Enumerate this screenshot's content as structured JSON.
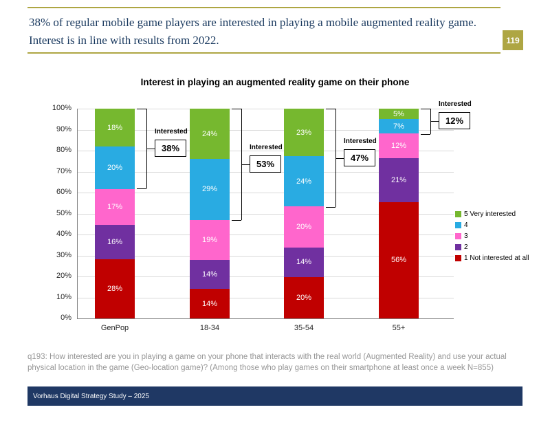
{
  "header": {
    "title": "38% of regular mobile game players are interested in playing a mobile augmented reality game. Interest is in line with results from 2022.",
    "page_number": "119"
  },
  "chart_data": {
    "type": "bar",
    "stacked": true,
    "title": "Interest in playing an augmented reality game on their phone",
    "categories": [
      "GenPop",
      "18-34",
      "35-54",
      "55+"
    ],
    "series": [
      {
        "name": "1 Not interested at all",
        "color": "#C00000",
        "values": [
          28,
          14,
          20,
          56
        ]
      },
      {
        "name": "2",
        "color": "#7030A0",
        "values": [
          16,
          14,
          14,
          21
        ]
      },
      {
        "name": "3",
        "color": "#FF66CC",
        "values": [
          17,
          19,
          20,
          12
        ]
      },
      {
        "name": "4",
        "color": "#29ABE2",
        "values": [
          20,
          29,
          24,
          7
        ]
      },
      {
        "name": "5 Very interested",
        "color": "#76B82F",
        "values": [
          18,
          24,
          23,
          5
        ]
      }
    ],
    "annotations": [
      {
        "label": "Interested",
        "value": "38%",
        "category": "GenPop",
        "span": 38
      },
      {
        "label": "Interested",
        "value": "53%",
        "category": "18-34",
        "span": 53
      },
      {
        "label": "Interested",
        "value": "47%",
        "category": "35-54",
        "span": 47
      },
      {
        "label": "Interested",
        "value": "12%",
        "category": "55+",
        "span": 12
      }
    ],
    "y_ticks": [
      "0%",
      "10%",
      "20%",
      "30%",
      "40%",
      "50%",
      "60%",
      "70%",
      "80%",
      "90%",
      "100%"
    ],
    "ylim": [
      0,
      100
    ],
    "grid": true,
    "legend_position": "right"
  },
  "footnote": "q193: How interested are you in playing a game on your phone that interacts with the real world (Augmented Reality) and use your actual physical location in the game (Geo-location game)? (Among those who play games on their smartphone at least once a week N=855)",
  "footer": {
    "label": "Vorhaus Digital Strategy Study – 2025"
  },
  "colors": {
    "accent_olive": "#AEA643",
    "footer_navy": "#1F3864"
  }
}
